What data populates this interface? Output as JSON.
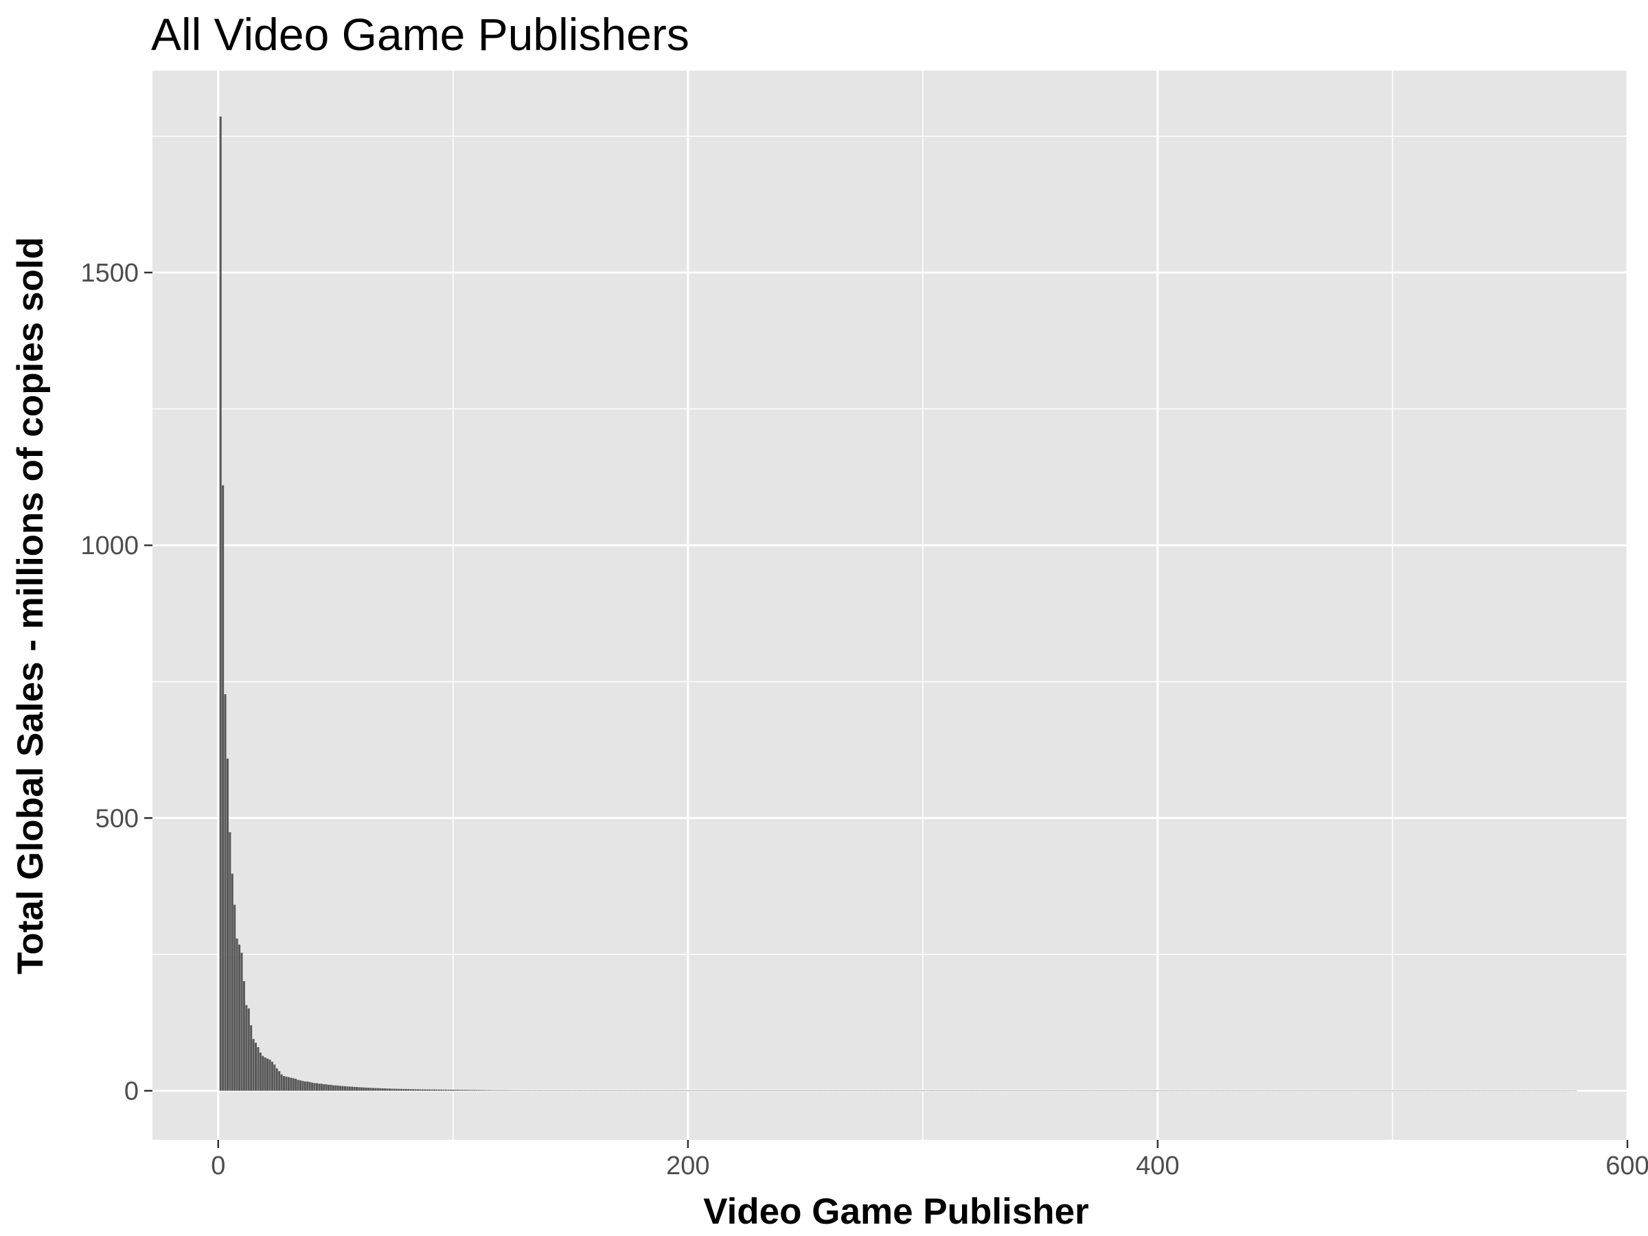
{
  "chart_data": {
    "type": "bar",
    "title": "All Video Game Publishers",
    "xlabel": "Video Game Publisher",
    "ylabel": "Total Global Sales - millions of copies sold",
    "xlim": [
      -28,
      600
    ],
    "ylim": [
      -90,
      1870
    ],
    "x_ticks": [
      0,
      200,
      400,
      600
    ],
    "y_ticks": [
      0,
      500,
      1000,
      1500
    ],
    "x_tick_labels": [
      "0",
      "200",
      "400",
      "600"
    ],
    "y_tick_labels": [
      "0",
      "500",
      "1000",
      "1500"
    ],
    "grid": true,
    "legend": "none",
    "n_publishers": 578,
    "values": [
      1786,
      1110,
      727,
      609,
      474,
      398,
      341,
      279,
      268,
      253,
      201,
      157,
      151,
      120,
      95,
      88,
      80,
      70,
      64,
      61,
      59,
      57,
      53,
      48,
      41,
      36,
      30,
      27,
      26,
      25,
      24,
      23,
      22,
      20,
      19,
      18,
      17,
      17,
      16,
      15,
      14,
      14,
      13,
      13,
      12,
      12,
      11,
      11,
      10,
      10,
      9.5,
      9,
      8.7,
      8.4,
      8,
      7.7,
      7.4,
      7.1,
      6.8,
      6.5,
      6.3,
      6,
      5.8,
      5.6,
      5.4,
      5.2,
      5,
      4.8,
      4.6,
      4.4,
      4.3,
      4.1,
      4,
      3.8,
      3.7,
      3.6,
      3.5,
      3.4,
      3.3,
      3.2,
      3.1,
      3,
      2.9,
      2.8,
      2.7,
      2.6,
      2.5,
      2.45,
      2.4,
      2.35,
      2.3,
      2.25,
      2.2,
      2.15,
      2.1,
      2.05,
      2,
      1.95,
      1.9,
      1.85,
      1.8,
      1.75,
      1.7,
      1.65,
      1.6,
      1.55,
      1.5,
      1.45,
      1.4,
      1.35,
      1.3,
      1.25,
      1.2,
      1.15,
      1.1,
      1.05,
      1,
      0.98,
      0.96,
      0.94,
      0.92,
      0.9,
      0.88,
      0.86,
      0.84,
      0.82,
      0.8,
      0.78,
      0.76,
      0.74,
      0.72,
      0.7,
      0.68,
      0.66,
      0.64,
      0.62,
      0.6
    ],
    "tail_value_start": 0.6,
    "tail_value_end": 0.01,
    "bar_color": "#595959",
    "panel_color": "#e5e5e5",
    "grid_color": "#ffffff"
  }
}
